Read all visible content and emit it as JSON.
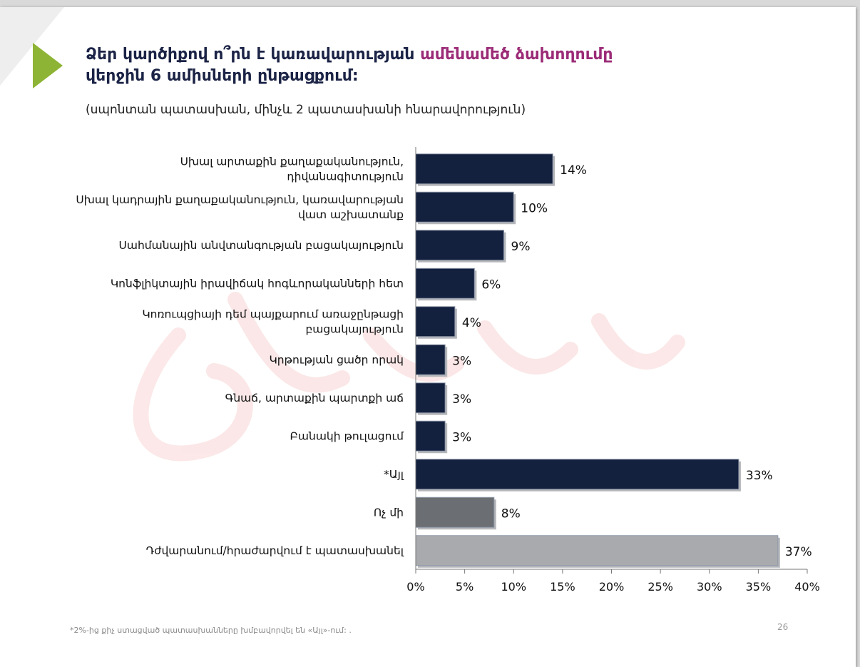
{
  "title": {
    "part1": "Ձեր կարծիքով ո՞րն է կառավարության",
    "part2": "ամենամեծ ձախողումը",
    "line2": "վերջին 6 ամիսների ընթացքում:"
  },
  "subtitle": "(սպոնտան պատասխան, մինչև 2 պատասխանի հնարավորություն)",
  "footnote": "*2%-ից քիչ ստացված պատասխանները խմբավորվել են «Այլ»-ում: .",
  "page_number": "26",
  "colors": {
    "accent": "#9b2b77",
    "title": "#1b2346",
    "arrow": "#8db434",
    "bar_dark": "#13213f",
    "bar_gray": "#6b6e72",
    "bar_light": "#a9aaad"
  },
  "chart_data": {
    "type": "bar",
    "orientation": "horizontal",
    "categories": [
      [
        "Սխալ արտաքին քաղաքականություն,",
        "դիվանագիտություն"
      ],
      [
        "Սխալ կադրային քաղաքականություն, կառավարության",
        "վատ աշխատանք"
      ],
      [
        "Սահմանային անվտանգության բացակայություն"
      ],
      [
        "Կոնֆլիկտային իրավիճակ հոգևորականների հետ"
      ],
      [
        "Կոռուպցիայի դեմ պայքարում առաջընթացի",
        "բացակայություն"
      ],
      [
        "Կրթության ցածր որակ"
      ],
      [
        "Գնաճ, արտաքին պարտքի աճ"
      ],
      [
        "Բանակի թուլացում"
      ],
      [
        "*Այլ"
      ],
      [
        "Ոչ մի"
      ],
      [
        "Դժվարանում/հրաժարվում է պատասխանել"
      ]
    ],
    "values": [
      14,
      10,
      9,
      6,
      4,
      3,
      3,
      3,
      33,
      8,
      37
    ],
    "value_labels": [
      "14%",
      "10%",
      "9%",
      "6%",
      "4%",
      "3%",
      "3%",
      "3%",
      "33%",
      "8%",
      "37%"
    ],
    "bar_colors": [
      "#13213f",
      "#13213f",
      "#13213f",
      "#13213f",
      "#13213f",
      "#13213f",
      "#13213f",
      "#13213f",
      "#13213f",
      "#6b6e72",
      "#a9aaad"
    ],
    "xlim": [
      0,
      40
    ],
    "xticks": [
      "0%",
      "5%",
      "10%",
      "15%",
      "20%",
      "25%",
      "30%",
      "35%",
      "40%"
    ],
    "grid": false,
    "legend": "none"
  }
}
